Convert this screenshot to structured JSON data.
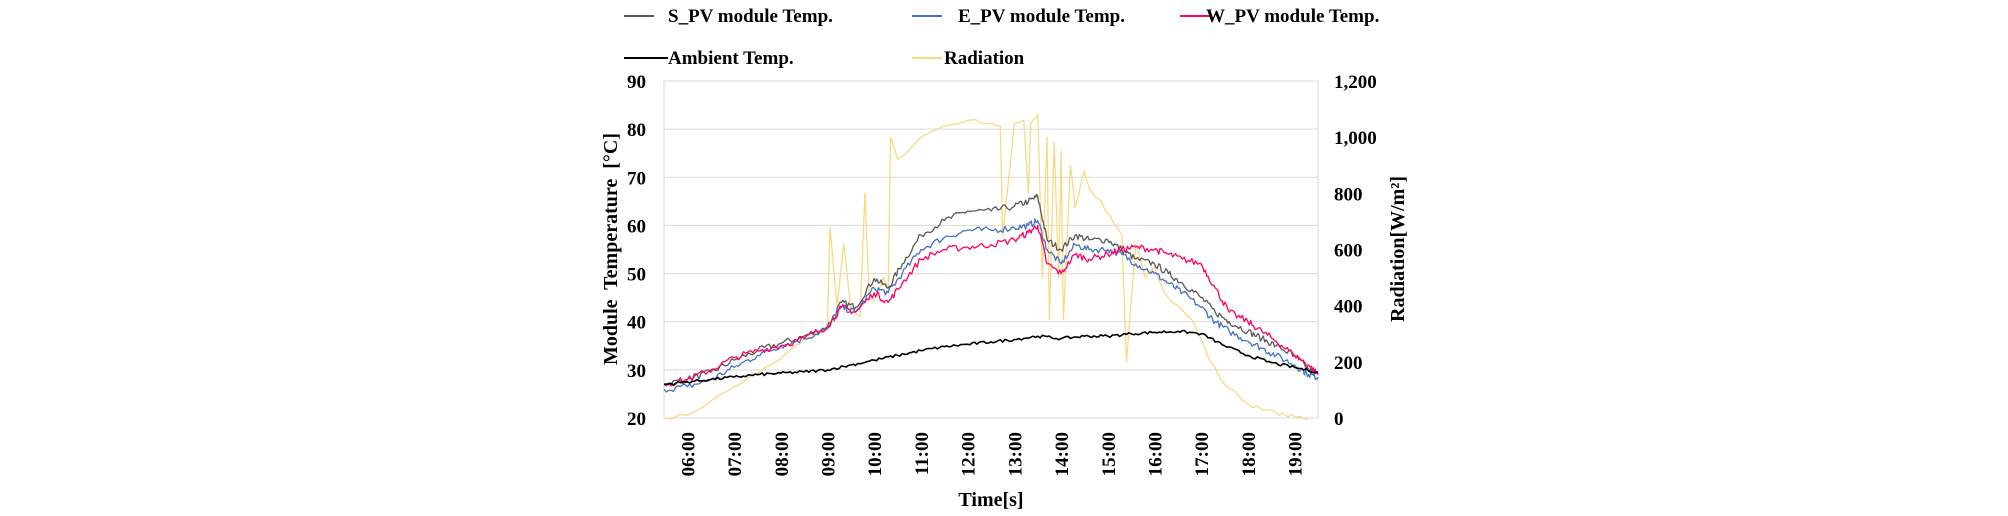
{
  "chart_data": {
    "type": "line",
    "title": "",
    "xlabel": "Time[s]",
    "ylabel": "Module  Temperature  [°C]",
    "y2label": "Radiation[W/m²]",
    "ylim": [
      20,
      90
    ],
    "y2lim": [
      0,
      1200
    ],
    "xlim": [
      5.5,
      19.5
    ],
    "grid": true,
    "legend_position": "top",
    "x_ticks": [
      "06:00",
      "07:00",
      "08:00",
      "09:00",
      "10:00",
      "11:00",
      "12:00",
      "13:00",
      "14:00",
      "15:00",
      "16:00",
      "17:00",
      "18:00",
      "19:00"
    ],
    "y_ticks": [
      "20",
      "30",
      "40",
      "50",
      "60",
      "70",
      "80",
      "90"
    ],
    "y2_ticks": [
      "0",
      "200",
      "400",
      "600",
      "800",
      "1,000",
      "1,200"
    ],
    "series": [
      {
        "name": "S_PV module Temp.",
        "axis": "left",
        "color": "#595959",
        "x": [
          5.5,
          6,
          6.5,
          7,
          7.5,
          8,
          8.5,
          9,
          9.3,
          9.6,
          10,
          10.3,
          10.6,
          11,
          11.5,
          12,
          12.5,
          13,
          13.3,
          13.5,
          13.7,
          14,
          14.3,
          14.6,
          15,
          15.3,
          15.6,
          16,
          16.3,
          16.6,
          17,
          17.3,
          17.6,
          18,
          18.3,
          18.6,
          19,
          19.3,
          19.5
        ],
        "values": [
          27,
          28,
          29.5,
          32,
          34,
          35.5,
          37,
          39,
          44,
          43,
          49,
          47,
          52,
          58,
          61,
          63,
          63,
          64,
          65,
          66,
          57,
          55,
          58,
          57,
          57,
          55,
          53,
          52,
          50,
          48,
          45,
          42,
          40,
          38,
          36.5,
          35,
          33,
          30,
          29
        ]
      },
      {
        "name": "E_PV module Temp.",
        "axis": "left",
        "color": "#4472c4",
        "x": [
          5.5,
          6,
          6.5,
          7,
          7.5,
          8,
          8.5,
          9,
          9.3,
          9.6,
          10,
          10.3,
          10.6,
          11,
          11.5,
          12,
          12.5,
          13,
          13.3,
          13.5,
          13.7,
          14,
          14.3,
          14.6,
          15,
          15.3,
          15.6,
          16,
          16.3,
          16.6,
          17,
          17.3,
          17.6,
          18,
          18.3,
          18.6,
          19,
          19.3,
          19.5
        ],
        "values": [
          26,
          26.5,
          28,
          30.5,
          33,
          35,
          36.5,
          38.5,
          43,
          42,
          47,
          46,
          50,
          55,
          57.5,
          59,
          59,
          59.5,
          60,
          61,
          55,
          52,
          56,
          55,
          55,
          54,
          52,
          50,
          48,
          46,
          43,
          40,
          38,
          36,
          34.5,
          33,
          31,
          29,
          28.5
        ]
      },
      {
        "name": "W_PV module Temp.",
        "axis": "left",
        "color": "#ff0066",
        "x": [
          5.5,
          6,
          6.5,
          7,
          7.5,
          8,
          8.5,
          9,
          9.3,
          9.6,
          10,
          10.3,
          10.6,
          11,
          11.5,
          12,
          12.5,
          13,
          13.3,
          13.5,
          13.7,
          14,
          14.3,
          14.6,
          15,
          15.3,
          15.6,
          16,
          16.3,
          16.6,
          17,
          17.3,
          17.6,
          18,
          18.3,
          18.6,
          19,
          19.3,
          19.5
        ],
        "values": [
          27,
          28,
          30,
          32.5,
          34,
          35,
          36.5,
          39,
          43,
          42,
          46,
          44,
          48,
          53,
          55,
          55.5,
          56,
          57,
          58.5,
          60,
          52,
          50,
          54,
          53,
          54,
          55,
          55.5,
          55,
          54,
          53,
          52,
          47,
          42,
          40,
          38,
          36,
          33,
          31,
          29
        ]
      },
      {
        "name": "Ambient Temp.",
        "axis": "left",
        "color": "#000000",
        "x": [
          5.5,
          6,
          6.5,
          7,
          7.5,
          8,
          8.5,
          9,
          9.5,
          10,
          10.5,
          11,
          11.5,
          12,
          12.5,
          13,
          13.5,
          14,
          14.5,
          15,
          15.5,
          16,
          16.5,
          17,
          17.5,
          18,
          18.5,
          19,
          19.5
        ],
        "values": [
          27,
          27.5,
          28,
          28.5,
          29,
          29.3,
          29.6,
          30,
          31,
          32,
          33,
          34,
          34.8,
          35.3,
          35.8,
          36.3,
          37,
          36.5,
          37,
          37,
          37.5,
          37.8,
          38,
          37.5,
          35,
          33,
          31.5,
          30.5,
          29.5
        ]
      },
      {
        "name": "Radiation",
        "axis": "right",
        "color": "#f9d984",
        "x": [
          5.5,
          6,
          6.5,
          7,
          7.5,
          8,
          8.2,
          8.5,
          8.8,
          9,
          9.05,
          9.2,
          9.35,
          9.5,
          9.7,
          9.8,
          9.9,
          10,
          10.2,
          10.3,
          10.35,
          10.5,
          11,
          11.5,
          12,
          12.5,
          12.7,
          12.75,
          13,
          13.2,
          13.3,
          13.35,
          13.5,
          13.6,
          13.7,
          13.75,
          13.85,
          13.95,
          14,
          14.05,
          14.2,
          14.3,
          14.5,
          14.6,
          14.8,
          15,
          15.2,
          15.3,
          15.4,
          15.6,
          15.8,
          16,
          16.2,
          16.5,
          16.8,
          17,
          17.2,
          17.5,
          17.8,
          18,
          18.3,
          18.6,
          18.8,
          19,
          19.2,
          19.3
        ],
        "values": [
          0,
          10,
          60,
          110,
          160,
          210,
          240,
          280,
          300,
          340,
          680,
          400,
          620,
          380,
          360,
          800,
          420,
          420,
          500,
          460,
          1000,
          920,
          1000,
          1040,
          1060,
          1050,
          1040,
          650,
          1050,
          1060,
          800,
          1050,
          1080,
          500,
          1000,
          350,
          980,
          500,
          950,
          350,
          900,
          750,
          880,
          820,
          780,
          730,
          680,
          650,
          200,
          620,
          500,
          540,
          450,
          400,
          350,
          280,
          200,
          120,
          80,
          50,
          30,
          20,
          10,
          5,
          0,
          0
        ]
      }
    ]
  },
  "legend": {
    "items": [
      {
        "label": "S_PV module Temp.",
        "color": "#595959"
      },
      {
        "label": "E_PV module Temp.",
        "color": "#4472c4"
      },
      {
        "label": "W_PV module Temp.",
        "color": "#ff0066"
      },
      {
        "label": "Ambient Temp.",
        "color": "#000000"
      },
      {
        "label": "Radiation",
        "color": "#f9d984"
      }
    ]
  }
}
